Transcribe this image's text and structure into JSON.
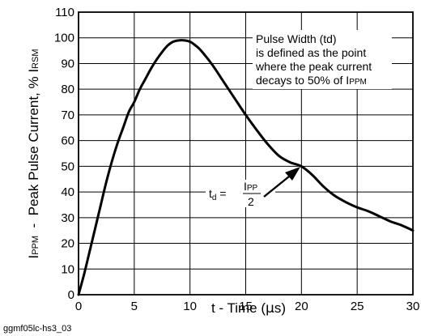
{
  "chart_data": {
    "type": "line",
    "x_axis": {
      "label_parts": [
        "t - Time (",
        "μ",
        "s)"
      ],
      "ticks": [
        "0",
        "5",
        "10",
        "15",
        "20",
        "25",
        "30"
      ],
      "range": [
        0,
        30
      ]
    },
    "y_axis": {
      "label_parts": [
        "I",
        "PPM",
        "  -  Peak Pulse Current, % I",
        "RSM"
      ],
      "ticks": [
        "0",
        "10",
        "20",
        "30",
        "40",
        "50",
        "60",
        "70",
        "80",
        "90",
        "100",
        "110"
      ],
      "range": [
        0,
        110
      ]
    },
    "grid": true,
    "series": [
      {
        "x": [
          0,
          0.5,
          1,
          1.5,
          2,
          2.5,
          3,
          3.5,
          4,
          4.5,
          5,
          5.5,
          6,
          6.5,
          7,
          7.5,
          8,
          8.5,
          9,
          9.5,
          10,
          10.5,
          11,
          12,
          13,
          14,
          15,
          16,
          17,
          18,
          19,
          20,
          21,
          22,
          23,
          24,
          25,
          26,
          27,
          28,
          29,
          30
        ],
        "y": [
          0,
          8,
          17,
          26,
          35,
          44,
          52,
          59,
          65,
          71,
          75,
          80,
          84,
          88,
          91.5,
          94.5,
          97,
          98.5,
          99,
          99,
          98.5,
          97,
          95,
          89.5,
          83,
          76.5,
          70,
          64,
          58.5,
          54,
          51.5,
          50,
          46.5,
          42,
          38.5,
          36,
          34,
          32.5,
          30.5,
          28.5,
          27,
          25
        ]
      }
    ],
    "annotations": {
      "pulse_width": [
        "Pulse Width (td)",
        "is defined as the point",
        "where the peak current",
        [
          "decays to 50% of I",
          "PPM"
        ]
      ],
      "td_formula": {
        "lhs_main": "t",
        "lhs_sub": "d",
        "equals": " = ",
        "numerator_main": "I",
        "numerator_sub": "PP",
        "denominator": "2"
      }
    },
    "figure_id": "ggmf05lc-hs3_03"
  }
}
